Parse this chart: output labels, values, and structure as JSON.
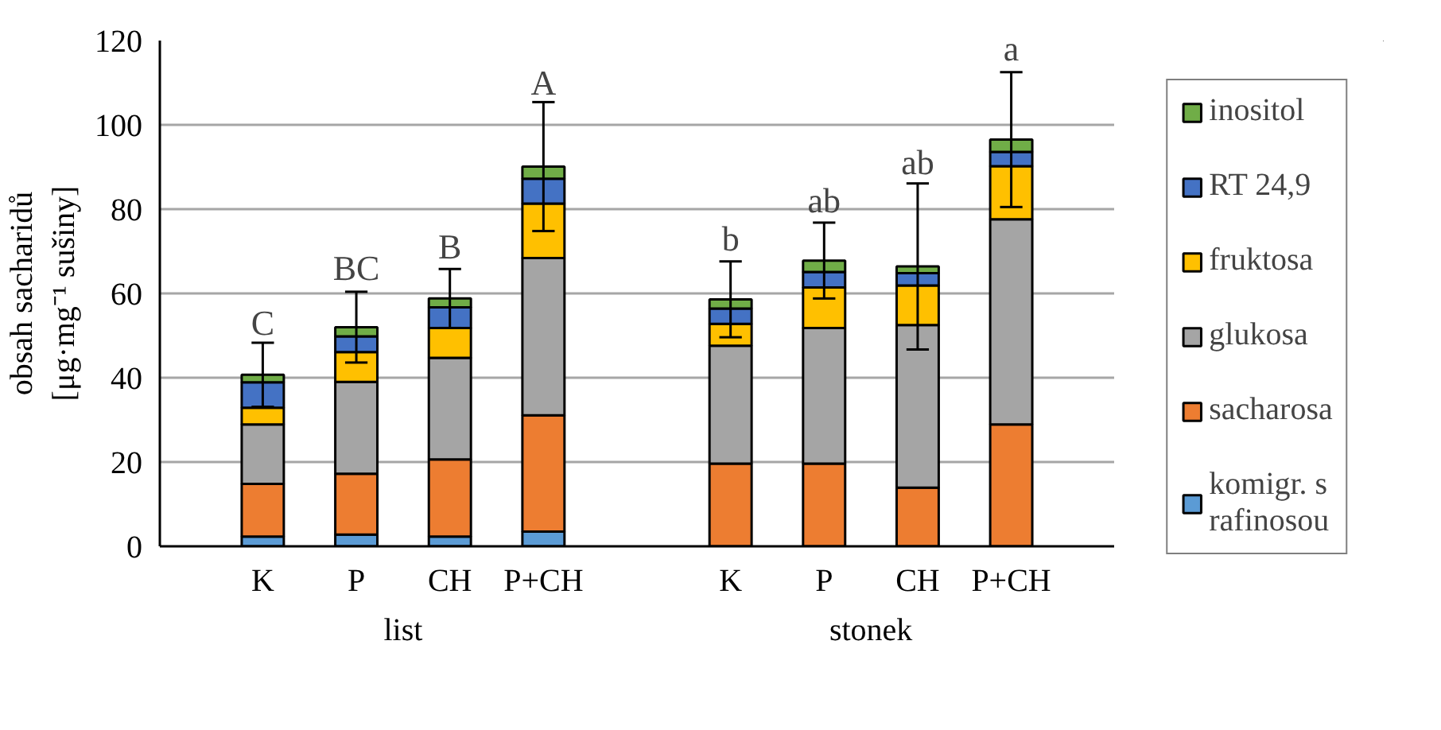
{
  "chart_data": {
    "type": "bar",
    "stacked": true,
    "ylabel": "obsah sacharidů [μg·mg⁻¹ sušiny]",
    "categories": [
      "K",
      "P",
      "CH",
      "P+CH",
      null,
      "K",
      "P",
      "CH",
      "P+CH"
    ],
    "series": [
      {
        "name": "komigr. s rafinosou",
        "color": "#5b9bd5",
        "values": [
          2.3,
          2.8,
          2.3,
          3.5,
          null,
          0,
          0,
          0,
          0
        ]
      },
      {
        "name": "sacharosa",
        "color": "#ed7d31",
        "values": [
          12.5,
          14.4,
          18.3,
          27.6,
          null,
          19.6,
          19.6,
          13.9,
          28.9
        ]
      },
      {
        "name": "glukosa",
        "color": "#a5a5a5",
        "values": [
          14.1,
          21.8,
          24.1,
          37.3,
          null,
          28.0,
          32.2,
          38.6,
          48.7
        ]
      },
      {
        "name": "fruktosa",
        "color": "#ffc000",
        "values": [
          4.0,
          7.1,
          7.1,
          12.9,
          null,
          5.2,
          9.6,
          9.4,
          12.6
        ]
      },
      {
        "name": "RT 24,9",
        "color": "#4472c4",
        "values": [
          6.0,
          3.7,
          4.9,
          5.9,
          null,
          3.6,
          3.7,
          2.9,
          3.4
        ]
      },
      {
        "name": "inositol",
        "color": "#70ad47",
        "values": [
          1.8,
          2.2,
          2.1,
          2.9,
          null,
          2.2,
          2.7,
          1.6,
          2.9
        ],
        "errors": [
          7.6,
          8.4,
          7.0,
          15.3,
          null,
          9.0,
          9.0,
          19.7,
          16.0
        ]
      }
    ],
    "annotations": [
      {
        "text": "C",
        "x": "K",
        "y": 48
      },
      {
        "text": "BC",
        "x": "P",
        "y": 61
      },
      {
        "text": "B",
        "x": "CH",
        "y": 66
      },
      {
        "text": "A",
        "x": "P+CH",
        "y": 105
      },
      {
        "text": "b",
        "y": 68
      },
      {
        "text": "ab",
        "y": 77
      },
      {
        "text": "ab",
        "y": 86
      },
      {
        "text": "a",
        "y": 113
      },
      "list",
      "stonek"
    ],
    "ylim": [
      0,
      120
    ],
    "yticks": [
      0,
      20,
      40,
      60,
      80,
      100,
      120
    ],
    "grid": "y",
    "legend": "right"
  }
}
